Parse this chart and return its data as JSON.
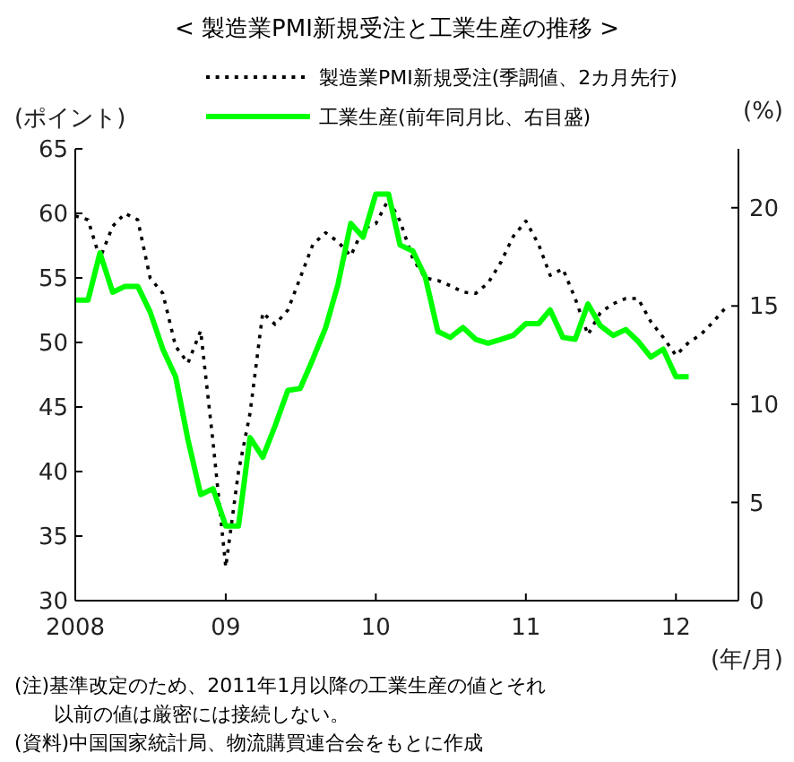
{
  "chart_data": {
    "type": "line",
    "title": "< 製造業PMI新規受注と工業生産の推移 >",
    "xlabel": "(年/月)",
    "ylabel": "(ポイント)",
    "y2label": "(%)",
    "xlim": [
      "2008-01",
      "2012-06"
    ],
    "xticks": [
      {
        "value": "2008-01",
        "label": "2008"
      },
      {
        "value": "2009-01",
        "label": "09"
      },
      {
        "value": "2010-01",
        "label": "10"
      },
      {
        "value": "2011-01",
        "label": "11"
      },
      {
        "value": "2012-01",
        "label": "12"
      }
    ],
    "ylim": [
      30,
      65
    ],
    "yticks": [
      30,
      35,
      40,
      45,
      50,
      55,
      60,
      65
    ],
    "y2lim": [
      0,
      23
    ],
    "y2ticks": [
      0,
      5,
      10,
      15,
      20
    ],
    "legend": "top",
    "grid": false,
    "series": [
      {
        "name": "製造業PMI新規受注(季調値、2カ月先行)",
        "color": "#000000",
        "line_style": "dotted",
        "x": [
          "2008-01",
          "2008-02",
          "2008-03",
          "2008-04",
          "2008-05",
          "2008-06",
          "2008-07",
          "2008-08",
          "2008-09",
          "2008-10",
          "2008-11",
          "2008-12",
          "2009-01",
          "2009-02",
          "2009-03",
          "2009-04",
          "2009-05",
          "2009-06",
          "2009-07",
          "2009-08",
          "2009-09",
          "2009-10",
          "2009-11",
          "2009-12",
          "2010-01",
          "2010-02",
          "2010-03",
          "2010-04",
          "2010-05",
          "2010-06",
          "2010-07",
          "2010-08",
          "2010-09",
          "2010-10",
          "2010-11",
          "2010-12",
          "2011-01",
          "2011-02",
          "2011-03",
          "2011-04",
          "2011-05",
          "2011-06",
          "2011-07",
          "2011-08",
          "2011-09",
          "2011-10",
          "2011-11",
          "2011-12",
          "2012-01",
          "2012-02",
          "2012-03",
          "2012-04",
          "2012-05"
        ],
        "values": [
          59.8,
          59.5,
          56.5,
          59,
          60,
          59.5,
          55,
          53.8,
          49.7,
          48.4,
          50.9,
          42.3,
          32.6,
          40,
          44.5,
          52.3,
          51.4,
          52.5,
          55,
          57.6,
          58.5,
          57.8,
          56.7,
          58.8,
          59.2,
          61.1,
          59.4,
          56.5,
          55,
          54.8,
          54.4,
          53.9,
          53.8,
          54.6,
          56.2,
          58.2,
          59.4,
          57.6,
          55.2,
          55.7,
          53.4,
          50.6,
          52.3,
          53,
          53.4,
          53.4,
          51.6,
          50.4,
          49,
          50,
          50.6,
          51.6,
          52.7
        ]
      },
      {
        "name": "工業生産(前年同月比、右目盛)",
        "color": "#00ff00",
        "axis": "y2",
        "line_style": "solid",
        "x": [
          "2008-01",
          "2008-02",
          "2008-03",
          "2008-04",
          "2008-05",
          "2008-06",
          "2008-07",
          "2008-08",
          "2008-09",
          "2008-10",
          "2008-11",
          "2008-12",
          "2009-01",
          "2009-02",
          "2009-03",
          "2009-04",
          "2009-05",
          "2009-06",
          "2009-07",
          "2009-08",
          "2009-09",
          "2009-10",
          "2009-11",
          "2009-12",
          "2010-01",
          "2010-02",
          "2010-03",
          "2010-04",
          "2010-05",
          "2010-06",
          "2010-07",
          "2010-08",
          "2010-09",
          "2010-10",
          "2010-11",
          "2010-12",
          "2011-01",
          "2011-02",
          "2011-03",
          "2011-04",
          "2011-05",
          "2011-06",
          "2011-07",
          "2011-08",
          "2011-09",
          "2011-10",
          "2011-11",
          "2011-12",
          "2012-01",
          "2012-02"
        ],
        "values": [
          15.3,
          15.3,
          17.7,
          15.7,
          16,
          16,
          14.7,
          12.8,
          11.4,
          8.2,
          5.4,
          5.7,
          3.8,
          3.8,
          8.3,
          7.3,
          8.9,
          10.7,
          10.8,
          12.3,
          13.9,
          16.1,
          19.2,
          18.5,
          20.7,
          20.7,
          18.1,
          17.8,
          16.5,
          13.7,
          13.4,
          13.9,
          13.3,
          13.1,
          13.3,
          13.5,
          14.1,
          14.1,
          14.8,
          13.4,
          13.3,
          15.1,
          14,
          13.5,
          13.8,
          13.2,
          12.4,
          12.8,
          11.4,
          11.4
        ]
      }
    ],
    "annotations": [
      "(注)基準改定のため、2011年1月以降の工業生産の値とそれ以前の値は厳密には接続しない。",
      "(資料)中国国家統計局、物流購買連合会をもとに作成"
    ]
  }
}
